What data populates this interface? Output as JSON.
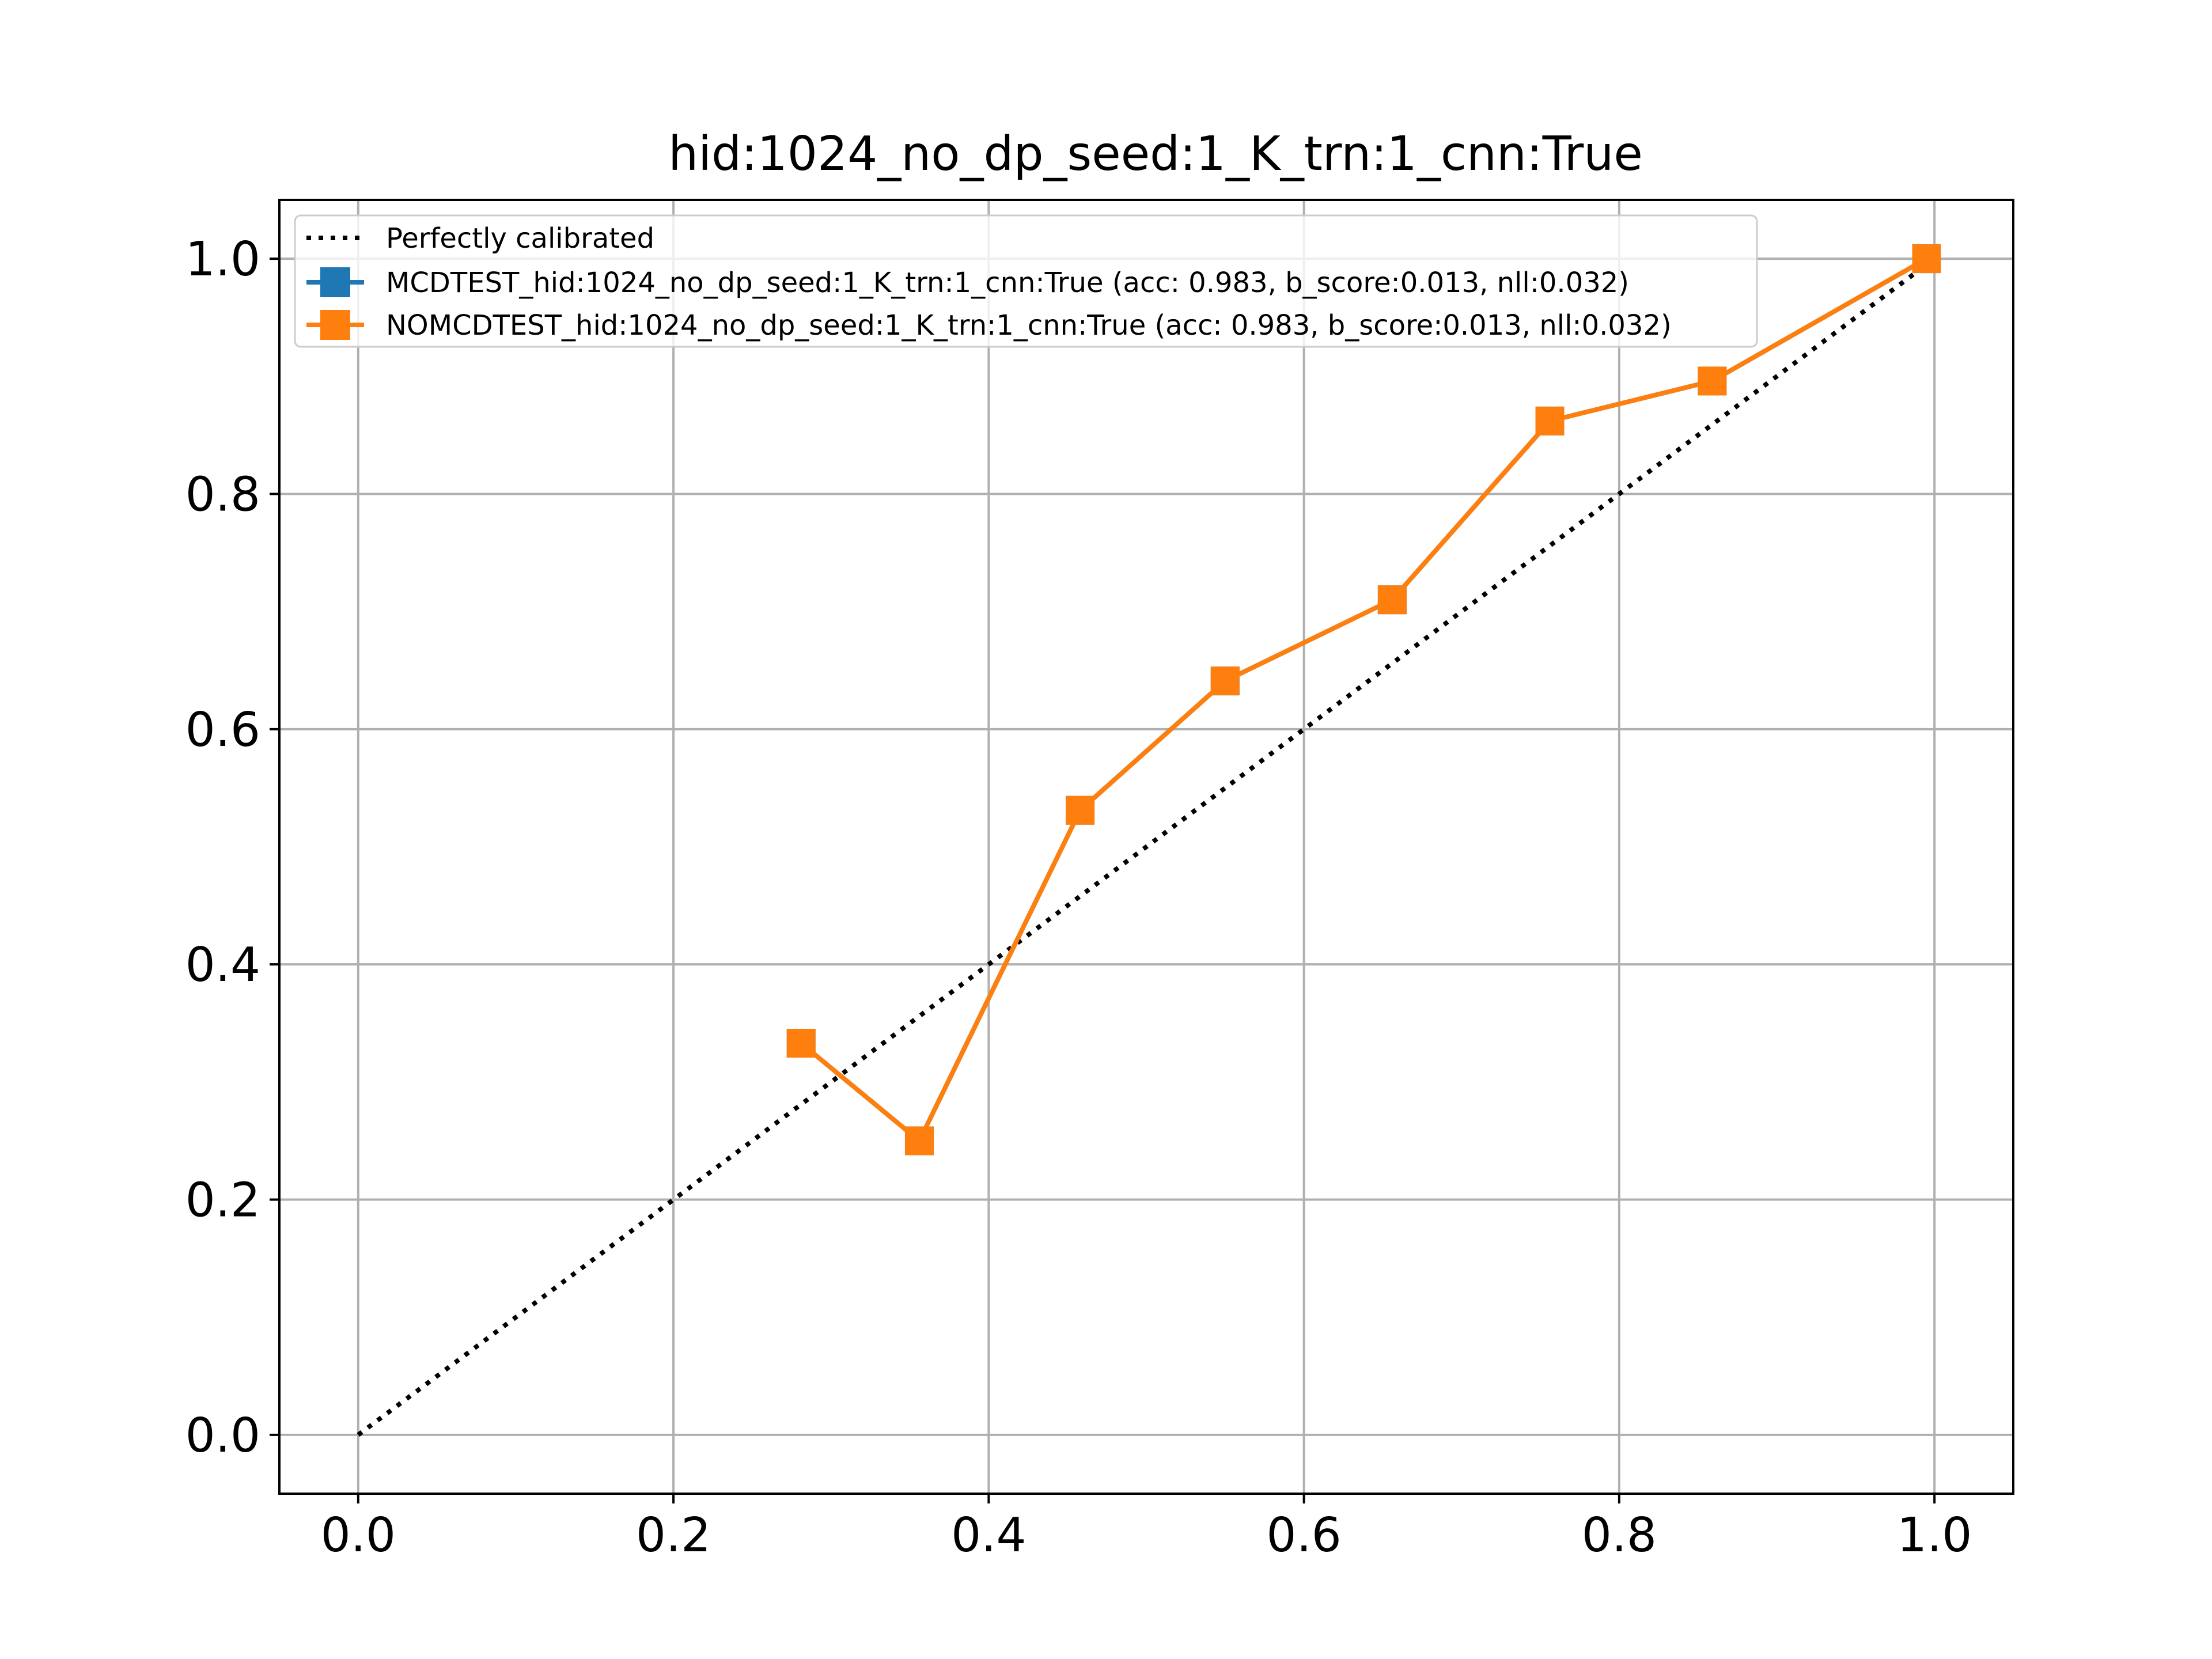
{
  "chart_data": {
    "type": "line",
    "title": "hid:1024_no_dp_seed:1_K_trn:1_cnn:True",
    "xlabel": "",
    "ylabel": "",
    "xlim": [
      -0.05,
      1.05
    ],
    "ylim": [
      -0.05,
      1.05
    ],
    "xticks": [
      "0.0",
      "0.2",
      "0.4",
      "0.6",
      "0.8",
      "1.0"
    ],
    "yticks": [
      "0.0",
      "0.2",
      "0.4",
      "0.6",
      "0.8",
      "1.0"
    ],
    "grid": true,
    "legend_position": "upper-left",
    "reference_line": {
      "name": "Perfectly calibrated",
      "x": [
        0,
        1
      ],
      "y": [
        0,
        1
      ],
      "color": "#000000",
      "style": "dotted"
    },
    "series": [
      {
        "name": "MCDTEST_hid:1024_no_dp_seed:1_K_trn:1_cnn:True (acc: 0.983, b_score:0.013, nll:0.032)",
        "color": "#1f77b4",
        "marker": "square",
        "x": [
          0.281,
          0.356,
          0.458,
          0.55,
          0.656,
          0.756,
          0.859,
          0.995
        ],
        "y": [
          0.333,
          0.25,
          0.531,
          0.641,
          0.71,
          0.862,
          0.896,
          1.0
        ]
      },
      {
        "name": "NOMCDTEST_hid:1024_no_dp_seed:1_K_trn:1_cnn:True (acc: 0.983, b_score:0.013, nll:0.032)",
        "color": "#ff7f0e",
        "marker": "square",
        "x": [
          0.281,
          0.356,
          0.458,
          0.55,
          0.656,
          0.756,
          0.859,
          0.995
        ],
        "y": [
          0.333,
          0.25,
          0.531,
          0.641,
          0.71,
          0.862,
          0.896,
          1.0
        ]
      }
    ]
  }
}
